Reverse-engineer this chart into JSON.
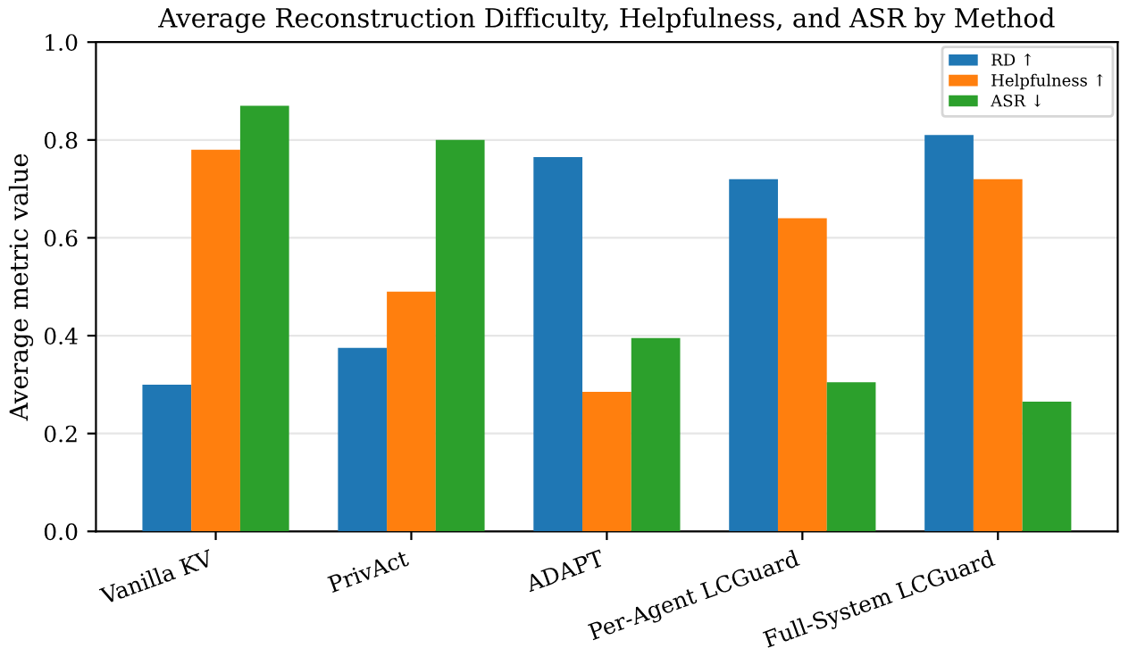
{
  "chart_data": {
    "type": "bar",
    "title": "Average Reconstruction Difficulty, Helpfulness, and ASR by Method",
    "ylabel": "Average metric value",
    "categories": [
      "Vanilla KV",
      "PrivAct",
      "ADAPT",
      "Per-Agent LCGuard",
      "Full-System LCGuard"
    ],
    "series": [
      {
        "name": "RD ↑",
        "color": "#1f77b4",
        "values": [
          0.3,
          0.375,
          0.765,
          0.72,
          0.81
        ]
      },
      {
        "name": "Helpfulness ↑",
        "color": "#ff7f0e",
        "values": [
          0.78,
          0.49,
          0.285,
          0.64,
          0.72
        ]
      },
      {
        "name": "ASR ↓",
        "color": "#2ca02c",
        "values": [
          0.87,
          0.8,
          0.395,
          0.305,
          0.265
        ]
      }
    ],
    "ylim": [
      0,
      1.0
    ],
    "yticks": [
      {
        "value": 0,
        "label": "0.0"
      },
      0.2,
      0.4,
      0.6,
      0.8,
      {
        "value": 1,
        "label": "1.0"
      }
    ],
    "grid": "y",
    "legend": "top right"
  }
}
